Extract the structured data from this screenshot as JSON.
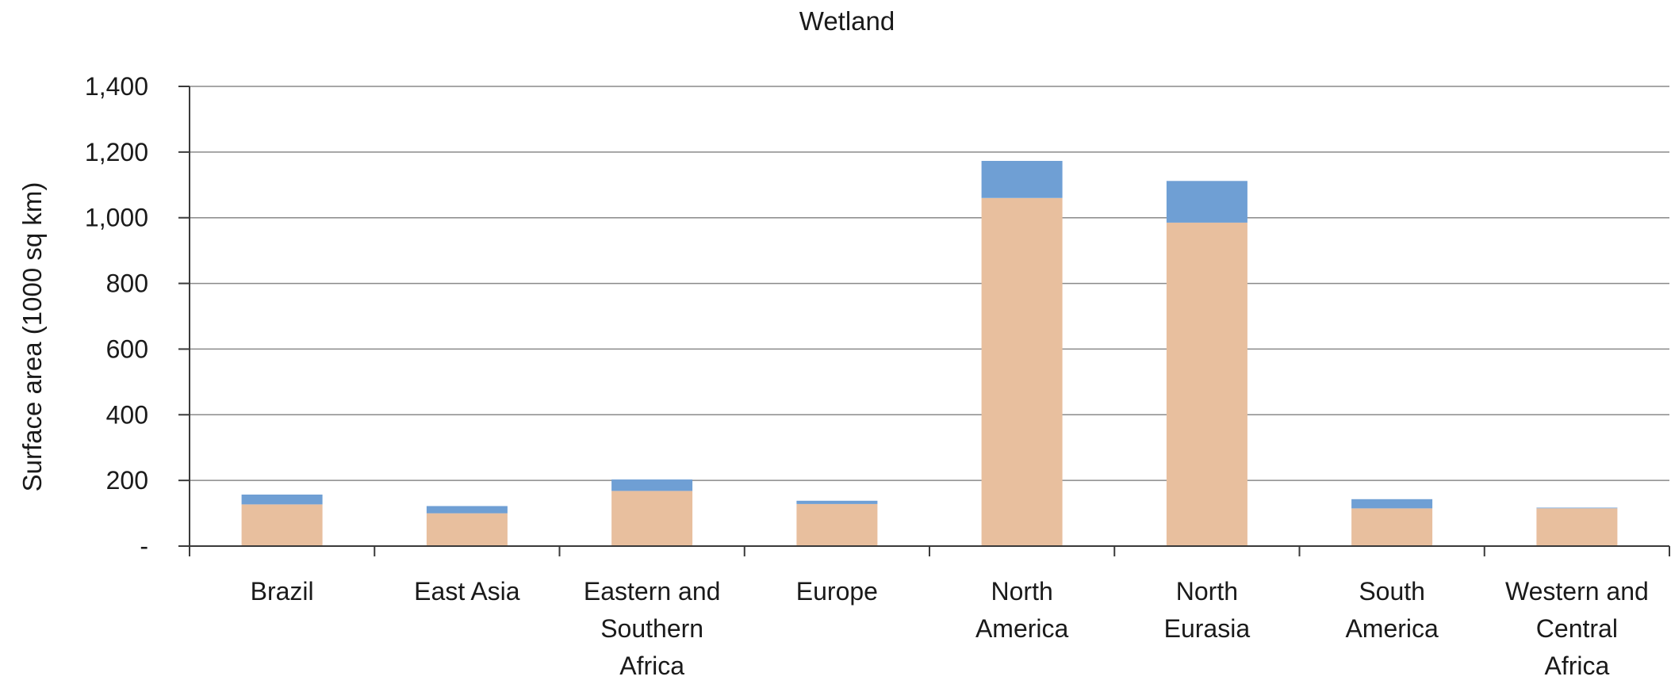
{
  "chart_data": {
    "type": "bar",
    "stacked": true,
    "title": "Wetland",
    "ylabel": "Surface area (1000 sq km)",
    "xlabel": "",
    "ylim": [
      0,
      1400
    ],
    "ytick_values": [
      0,
      200,
      400,
      600,
      800,
      1000,
      1200,
      1400
    ],
    "ytick_labels": [
      "-",
      "200",
      "400",
      "600",
      "800",
      "1,000",
      "1,200",
      "1,400"
    ],
    "grid": true,
    "categories": [
      [
        "Brazil"
      ],
      [
        "East Asia"
      ],
      [
        "Eastern and",
        "Southern",
        "Africa"
      ],
      [
        "Europe"
      ],
      [
        "North",
        "America"
      ],
      [
        "North",
        "Eurasia"
      ],
      [
        "South",
        "America"
      ],
      [
        "Western and",
        "Central",
        "Africa"
      ]
    ],
    "series": [
      {
        "color": "#e8bf9e",
        "values": [
          127,
          100,
          168,
          128,
          1060,
          985,
          115,
          115
        ]
      },
      {
        "color": "#6f9fd4",
        "values": [
          30,
          22,
          35,
          10,
          113,
          127,
          28,
          2
        ]
      }
    ]
  }
}
